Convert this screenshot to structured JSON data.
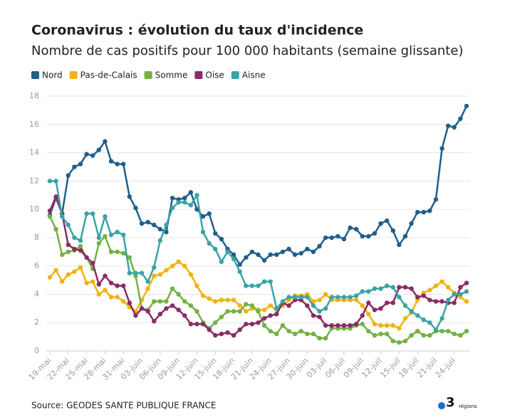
{
  "chart_data": {
    "type": "line",
    "title": "Coronavirus : évolution du taux d'incidence",
    "subtitle": "Nombre de cas positifs pour 100 000 habitants (semaine glissante)",
    "source": "Source: GEODES SANTE PUBLIQUE FRANCE",
    "logo": {
      "number": "3",
      "text": "régions"
    },
    "categories": [
      "19-mai",
      null,
      null,
      "22-mai",
      null,
      null,
      "25-mai",
      null,
      null,
      "28-mai",
      null,
      null,
      "31-mai",
      null,
      null,
      "03-juin",
      null,
      null,
      "06-juin",
      null,
      null,
      "09-juin",
      null,
      null,
      "12-juin",
      null,
      null,
      "15-juin",
      null,
      null,
      "18-juin",
      null,
      null,
      "21-juin",
      null,
      null,
      "24-juin",
      null,
      null,
      "27-juin",
      null,
      null,
      "30-juin",
      null,
      null,
      "03-juil",
      null,
      null,
      "06-juil",
      null,
      null,
      "09-juil",
      null,
      null,
      "12-juil",
      null,
      null,
      "15-juil",
      null,
      null,
      "18-juil",
      null,
      null,
      "21-juil",
      null,
      null,
      "24-juil",
      null,
      null
    ],
    "series": [
      {
        "name": "Nord",
        "color": "#1f5f8b",
        "values": [
          9.6,
          10.8,
          9.7,
          12.4,
          13.0,
          13.2,
          13.9,
          13.8,
          14.2,
          14.8,
          13.4,
          13.2,
          13.2,
          10.9,
          10.1,
          9.0,
          9.1,
          8.9,
          8.6,
          8.4,
          10.8,
          10.7,
          10.8,
          11.2,
          10.0,
          9.5,
          9.7,
          8.3,
          7.9,
          7.2,
          6.8,
          6.1,
          6.6,
          7.0,
          6.8,
          6.4,
          6.8,
          6.8,
          7.0,
          7.2,
          6.8,
          6.9,
          7.2,
          7.0,
          7.4,
          8.0,
          8.0,
          8.1,
          7.9,
          8.7,
          8.6,
          8.1,
          8.1,
          8.3,
          9.0,
          9.2,
          8.5,
          7.5,
          8.1,
          9.0,
          9.8,
          9.8,
          9.9,
          10.7,
          14.3,
          15.9,
          15.8,
          16.4,
          17.3
        ]
      },
      {
        "name": "Pas-de-Calais",
        "color": "#f0b310",
        "values": [
          5.2,
          5.7,
          4.9,
          5.4,
          5.6,
          5.9,
          4.8,
          4.9,
          4.0,
          4.3,
          3.8,
          3.8,
          3.5,
          3.1,
          2.8,
          3.6,
          4.4,
          5.3,
          5.4,
          5.7,
          6.0,
          6.3,
          6.0,
          5.4,
          4.6,
          3.9,
          3.7,
          3.5,
          3.6,
          3.6,
          3.6,
          3.2,
          2.8,
          3.0,
          2.9,
          2.9,
          3.2,
          2.9,
          3.2,
          3.6,
          3.9,
          3.9,
          4.0,
          3.5,
          3.6,
          4.0,
          3.6,
          3.6,
          3.6,
          3.6,
          3.6,
          3.2,
          2.6,
          1.9,
          1.8,
          1.8,
          1.8,
          1.6,
          2.3,
          2.7,
          3.6,
          4.1,
          4.3,
          4.6,
          4.9,
          4.5,
          4.1,
          3.8,
          3.5
        ]
      },
      {
        "name": "Somme",
        "color": "#73b143",
        "values": [
          9.5,
          8.6,
          6.8,
          7.0,
          7.1,
          7.4,
          6.6,
          5.8,
          7.6,
          8.1,
          7.0,
          7.0,
          6.9,
          6.6,
          5.3,
          3.0,
          2.9,
          3.5,
          3.5,
          3.5,
          4.4,
          4.0,
          3.5,
          3.2,
          2.8,
          2.0,
          1.6,
          2.0,
          2.4,
          2.8,
          2.8,
          2.8,
          3.3,
          3.2,
          2.8,
          1.8,
          1.4,
          1.2,
          1.8,
          1.4,
          1.2,
          1.4,
          1.2,
          1.2,
          0.9,
          0.9,
          1.6,
          1.6,
          1.6,
          1.6,
          1.8,
          1.9,
          1.4,
          1.1,
          1.2,
          1.2,
          0.7,
          0.6,
          0.7,
          1.1,
          1.4,
          1.1,
          1.1,
          1.4,
          1.4,
          1.4,
          1.2,
          1.1,
          1.4
        ]
      },
      {
        "name": "Oise",
        "color": "#8b2a66",
        "values": [
          9.9,
          10.9,
          9.7,
          7.5,
          7.2,
          7.1,
          6.6,
          6.2,
          4.7,
          5.3,
          4.8,
          4.6,
          4.6,
          3.4,
          2.5,
          3.0,
          2.8,
          2.1,
          2.6,
          3.0,
          3.2,
          2.9,
          2.5,
          1.9,
          1.9,
          1.9,
          1.5,
          1.1,
          1.2,
          1.3,
          1.1,
          1.5,
          1.9,
          1.9,
          2.0,
          2.3,
          2.5,
          2.6,
          3.4,
          3.2,
          3.6,
          3.6,
          3.2,
          2.5,
          2.4,
          1.8,
          1.8,
          1.8,
          1.8,
          1.8,
          1.9,
          2.5,
          3.4,
          2.9,
          3.0,
          3.4,
          3.4,
          4.5,
          4.5,
          4.4,
          3.8,
          3.9,
          3.6,
          3.5,
          3.5,
          3.4,
          3.4,
          4.5,
          4.8
        ]
      },
      {
        "name": "Aisne",
        "color": "#3ba3a6",
        "values": [
          12.0,
          12.0,
          9.5,
          8.9,
          8.0,
          7.8,
          9.7,
          9.7,
          8.0,
          9.5,
          8.2,
          8.4,
          8.2,
          5.5,
          5.5,
          5.5,
          4.9,
          5.9,
          7.8,
          8.9,
          10.1,
          10.5,
          10.5,
          10.3,
          11.0,
          8.4,
          7.6,
          7.2,
          6.3,
          7.0,
          6.5,
          5.6,
          4.6,
          4.6,
          4.6,
          4.9,
          4.9,
          3.0,
          3.5,
          3.8,
          3.8,
          3.8,
          3.8,
          3.2,
          2.8,
          3.0,
          3.8,
          3.8,
          3.8,
          3.8,
          3.9,
          4.2,
          4.2,
          4.4,
          4.4,
          4.6,
          4.5,
          3.8,
          3.2,
          2.8,
          2.5,
          2.2,
          2.0,
          1.5,
          2.3,
          3.6,
          4.0,
          4.0,
          4.2
        ]
      }
    ],
    "ylim": [
      0,
      18
    ],
    "yticks": [
      0,
      2,
      4,
      6,
      8,
      10,
      12,
      14,
      16,
      18
    ],
    "grid": true,
    "legend": "top"
  }
}
